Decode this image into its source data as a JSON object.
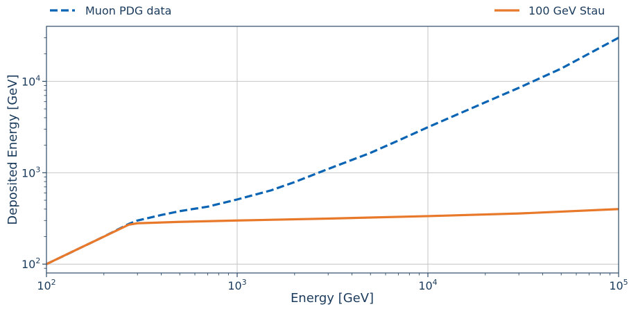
{
  "chart_data": {
    "type": "line",
    "title": "",
    "xlabel": "Energy [GeV]",
    "ylabel": "Deposited Energy [GeV]",
    "xscale": "log",
    "yscale": "log",
    "xlim": [
      100,
      100000
    ],
    "ylim": [
      80,
      40000
    ],
    "grid": true,
    "legend_placement": "above plot, split left and right",
    "x_ticks": [
      {
        "value": 100,
        "base": "10",
        "exp": "2"
      },
      {
        "value": 1000,
        "base": "10",
        "exp": "3"
      },
      {
        "value": 10000,
        "base": "10",
        "exp": "4"
      },
      {
        "value": 100000,
        "base": "10",
        "exp": "5"
      }
    ],
    "y_ticks": [
      {
        "value": 100,
        "base": "10",
        "exp": "2"
      },
      {
        "value": 1000,
        "base": "10",
        "exp": "3"
      },
      {
        "value": 10000,
        "base": "10",
        "exp": "4"
      }
    ],
    "series": [
      {
        "name": "Muon PDG data",
        "style": "dashed",
        "color": "#0a64b4",
        "x": [
          100,
          150,
          200,
          270,
          300,
          400,
          500,
          700,
          1000,
          1500,
          2000,
          3000,
          5000,
          7000,
          10000,
          20000,
          30000,
          50000,
          100000
        ],
        "y": [
          100,
          150,
          200,
          275,
          300,
          345,
          380,
          425,
          510,
          640,
          790,
          1100,
          1650,
          2250,
          3150,
          5900,
          8500,
          13800,
          30000
        ]
      },
      {
        "name": "100 GeV Stau",
        "style": "solid",
        "color": "#e8782a",
        "x": [
          100,
          150,
          200,
          270,
          300,
          500,
          1000,
          3000,
          10000,
          30000,
          100000
        ],
        "y": [
          100,
          150,
          200,
          270,
          280,
          290,
          300,
          315,
          335,
          358,
          400
        ]
      }
    ]
  }
}
